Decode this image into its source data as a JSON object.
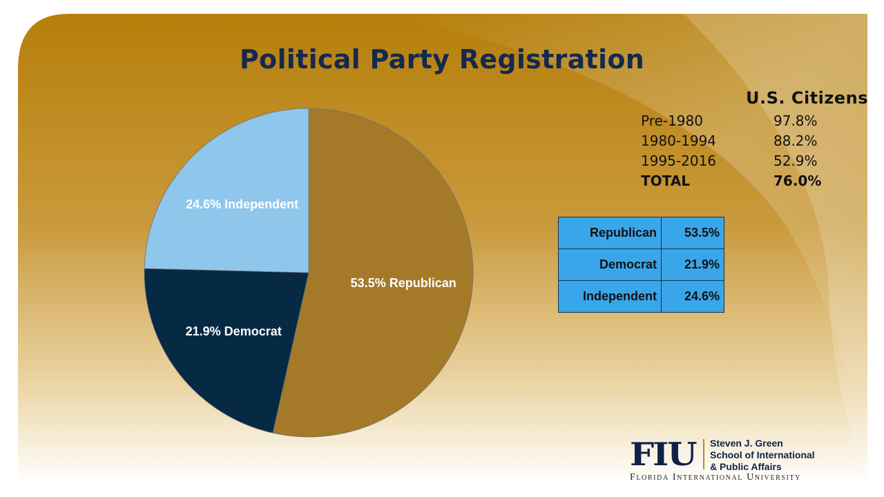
{
  "slide": {
    "title": "Political Party Registration"
  },
  "chart_data": {
    "type": "pie",
    "title": "",
    "slices": [
      {
        "label": "Republican",
        "value": 53.5,
        "display": "53.5% Republican",
        "color": "#a47a28"
      },
      {
        "label": "Democrat",
        "value": 21.9,
        "display": "21.9% Democrat",
        "color": "#062a44"
      },
      {
        "label": "Independent",
        "value": 24.6,
        "display": "24.6% Independent",
        "color": "#8fc6ec"
      }
    ]
  },
  "citizens": {
    "header": "U.S. Citizens",
    "rows": [
      {
        "period": "Pre-1980",
        "pct": "97.8%"
      },
      {
        "period": "1980-1994",
        "pct": "88.2%"
      },
      {
        "period": "1995-2016",
        "pct": "52.9%"
      }
    ],
    "total": {
      "period": "TOTAL",
      "pct": "76.0%"
    }
  },
  "party_table": {
    "rows": [
      {
        "name": "Republican",
        "value": "53.5%"
      },
      {
        "name": "Democrat",
        "value": "21.9%"
      },
      {
        "name": "Independent",
        "value": "24.6%"
      }
    ],
    "fill_color": "#3aa6ea"
  },
  "logo": {
    "mark": "FIU",
    "line1": "Steven J. Green",
    "line2": "School of International",
    "line3": "& Public Affairs",
    "university": "Florida International University"
  }
}
